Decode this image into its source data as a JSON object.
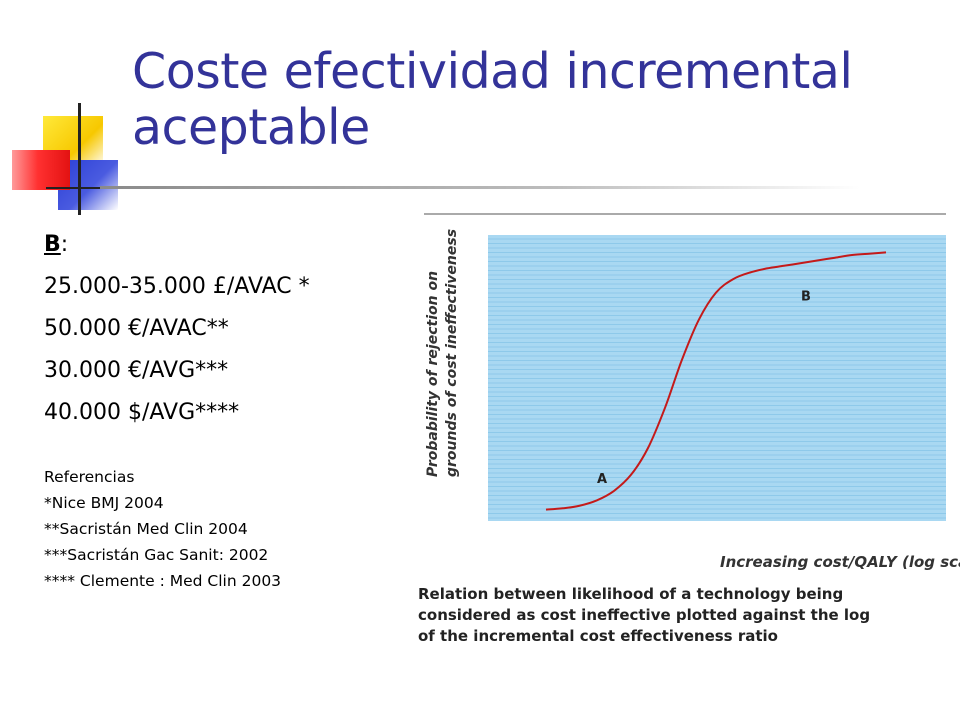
{
  "slide": {
    "title_line1": "Coste efectividad incremental",
    "title_line2": "aceptable"
  },
  "left": {
    "heading": "B",
    "heading_suffix": ":",
    "lines": [
      "25.000-35.000 £/AVAC *",
      "50.000 €/AVAC**",
      "30.000 €/AVG***",
      "40.000 $/AVG****"
    ],
    "refs_title": "Referencias",
    "refs": [
      "*Nice BMJ 2004",
      "**Sacristán Med Clin 2004",
      "***Sacristán Gac Sanit: 2002",
      "**** Clemente : Med Clin 2003"
    ]
  },
  "chart_data": {
    "type": "line",
    "ylabel_line1": "Probability of rejection on",
    "ylabel_line2": "grounds of cost ineffectiveness",
    "xlabel": "Increasing cost/QALY (log scale)",
    "caption": "Relation between likelihood of a technology being considered as cost ineffective plotted against the log of the incremental cost effectiveness ratio",
    "annotations": [
      {
        "label": "A",
        "x": 0.15,
        "y": 0.12
      },
      {
        "label": "B",
        "x": 0.75,
        "y": 0.8
      }
    ],
    "grid": true,
    "x": [
      0.0,
      0.05,
      0.1,
      0.15,
      0.2,
      0.25,
      0.3,
      0.35,
      0.4,
      0.45,
      0.5,
      0.55,
      0.6,
      0.65,
      0.7,
      0.75,
      0.8,
      0.85,
      0.9,
      0.95,
      1.0
    ],
    "values": [
      0.02,
      0.025,
      0.035,
      0.055,
      0.09,
      0.15,
      0.25,
      0.4,
      0.58,
      0.73,
      0.83,
      0.88,
      0.905,
      0.92,
      0.93,
      0.94,
      0.95,
      0.96,
      0.97,
      0.975,
      0.98
    ],
    "colors": {
      "background": "#a9d8f2",
      "grid": "#8ec9ea",
      "line": "#c41a1a"
    }
  }
}
